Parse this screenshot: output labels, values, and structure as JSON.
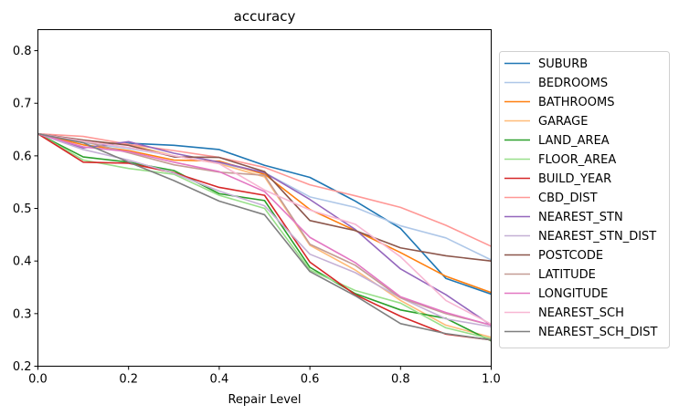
{
  "chart_data": {
    "type": "line",
    "title": "accuracy",
    "xlabel": "Repair Level",
    "ylabel": "",
    "xlim": [
      0.0,
      1.0
    ],
    "ylim": [
      0.2,
      0.84
    ],
    "xticks": [
      "0.0",
      "0.2",
      "0.4",
      "0.6",
      "0.8",
      "1.0"
    ],
    "yticks": [
      "0.2",
      "0.3",
      "0.4",
      "0.5",
      "0.6",
      "0.7",
      "0.8"
    ],
    "grid": false,
    "legend_position": "right",
    "x": [
      0.0,
      0.1,
      0.2,
      0.3,
      0.4,
      0.5,
      0.6,
      0.7,
      0.8,
      0.9,
      1.0
    ],
    "series": [
      {
        "name": "SUBURB",
        "color": "#1f77b4",
        "values": [
          0.642,
          0.625,
          0.624,
          0.62,
          0.612,
          0.582,
          0.559,
          0.514,
          0.462,
          0.367,
          0.337
        ]
      },
      {
        "name": "BEDROOMS",
        "color": "#aec7e8",
        "values": [
          0.642,
          0.625,
          0.614,
          0.6,
          0.586,
          0.568,
          0.522,
          0.502,
          0.467,
          0.444,
          0.402
        ]
      },
      {
        "name": "BATHROOMS",
        "color": "#ff7f0e",
        "values": [
          0.642,
          0.621,
          0.61,
          0.592,
          0.59,
          0.565,
          0.498,
          0.458,
          0.416,
          0.371,
          0.34
        ]
      },
      {
        "name": "GARAGE",
        "color": "#ffbb78",
        "values": [
          0.642,
          0.628,
          0.622,
          0.6,
          0.585,
          0.56,
          0.43,
          0.383,
          0.325,
          0.278,
          0.255
        ]
      },
      {
        "name": "LAND_AREA",
        "color": "#2ca02c",
        "values": [
          0.642,
          0.598,
          0.588,
          0.572,
          0.528,
          0.515,
          0.388,
          0.338,
          0.307,
          0.291,
          0.248
        ]
      },
      {
        "name": "FLOOR_AREA",
        "color": "#98df8a",
        "values": [
          0.642,
          0.592,
          0.576,
          0.565,
          0.525,
          0.5,
          0.383,
          0.344,
          0.32,
          0.273,
          0.252
        ]
      },
      {
        "name": "BUILD_YEAR",
        "color": "#d62728",
        "values": [
          0.642,
          0.588,
          0.586,
          0.568,
          0.54,
          0.525,
          0.398,
          0.336,
          0.295,
          0.261,
          0.25
        ]
      },
      {
        "name": "CBD_DIST",
        "color": "#ff9896",
        "values": [
          0.642,
          0.637,
          0.622,
          0.61,
          0.597,
          0.578,
          0.545,
          0.524,
          0.502,
          0.468,
          0.428
        ]
      },
      {
        "name": "NEAREST_STN",
        "color": "#9467bd",
        "values": [
          0.642,
          0.615,
          0.627,
          0.605,
          0.588,
          0.568,
          0.517,
          0.46,
          0.385,
          0.336,
          0.278
        ]
      },
      {
        "name": "NEAREST_STN_DIST",
        "color": "#c5b0d5",
        "values": [
          0.642,
          0.612,
          0.592,
          0.567,
          0.533,
          0.505,
          0.413,
          0.378,
          0.33,
          0.29,
          0.275
        ]
      },
      {
        "name": "POSTCODE",
        "color": "#8c564b",
        "values": [
          0.642,
          0.63,
          0.62,
          0.598,
          0.597,
          0.57,
          0.477,
          0.458,
          0.425,
          0.41,
          0.4
        ]
      },
      {
        "name": "LATITUDE",
        "color": "#c49c94",
        "values": [
          0.642,
          0.628,
          0.606,
          0.583,
          0.569,
          0.563,
          0.432,
          0.392,
          0.33,
          0.3,
          0.278
        ]
      },
      {
        "name": "LONGITUDE",
        "color": "#e377c2",
        "values": [
          0.642,
          0.617,
          0.608,
          0.588,
          0.57,
          0.532,
          0.445,
          0.397,
          0.332,
          0.302,
          0.278
        ]
      },
      {
        "name": "NEAREST_SCH",
        "color": "#f7b6d2",
        "values": [
          0.642,
          0.628,
          0.616,
          0.6,
          0.585,
          0.535,
          0.497,
          0.47,
          0.408,
          0.325,
          0.28
        ]
      },
      {
        "name": "NEAREST_SCH_DIST",
        "color": "#7f7f7f",
        "values": [
          0.642,
          0.625,
          0.588,
          0.553,
          0.514,
          0.488,
          0.38,
          0.334,
          0.281,
          0.262,
          0.25
        ]
      }
    ]
  }
}
